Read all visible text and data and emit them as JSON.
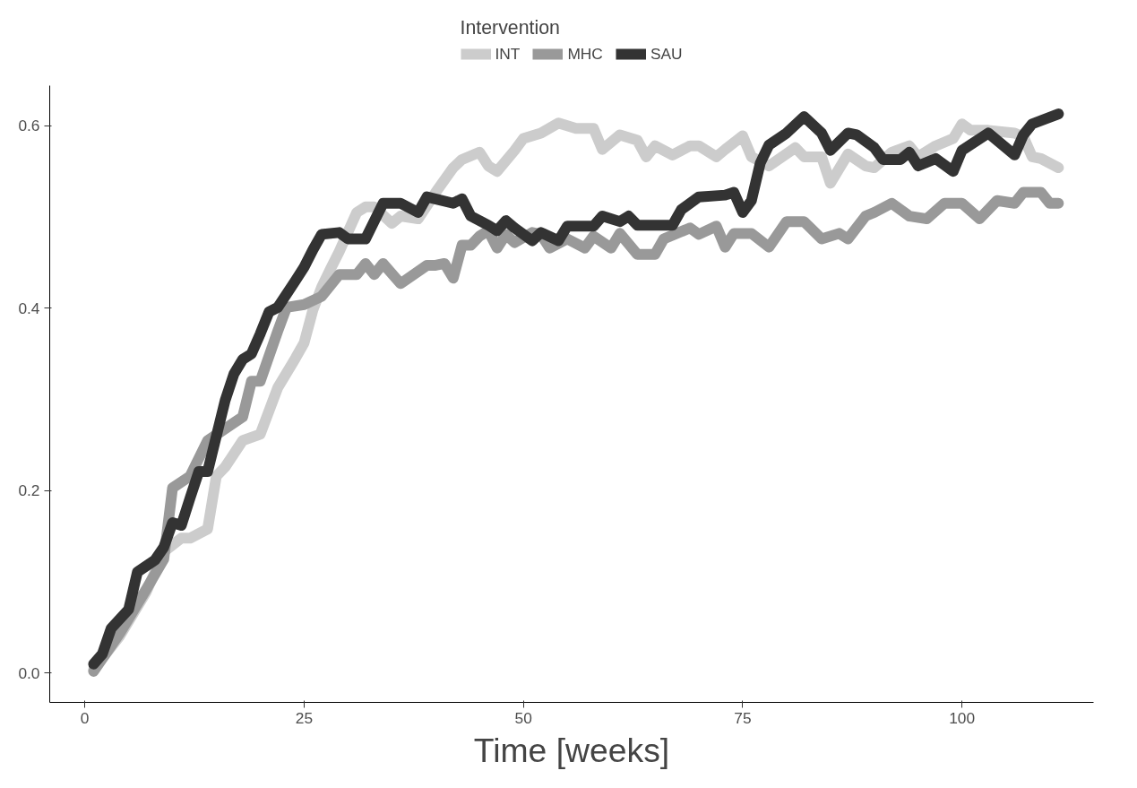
{
  "chart_data": {
    "type": "line",
    "xlabel": "Time [weeks]",
    "legend_title": "Intervention",
    "legend": "top",
    "grid": false,
    "marker": "none",
    "line_style": "solid",
    "xlim": [
      -4,
      115
    ],
    "xticks": [
      0,
      25,
      50,
      75,
      100
    ],
    "ylim": [
      -0.032,
      0.644
    ],
    "yticks": [
      {
        "value": 0,
        "label": "0.0"
      },
      {
        "value": 0.2,
        "label": "0.2"
      },
      {
        "value": 0.4,
        "label": "0.4"
      },
      {
        "value": 0.6,
        "label": "0.6"
      }
    ],
    "series": [
      {
        "name": "INT",
        "color": "#cccccc",
        "x": [
          1,
          4,
          7,
          9,
          11,
          12,
          14,
          15,
          16,
          18,
          20,
          22,
          24,
          25,
          26,
          27,
          28,
          29,
          31,
          32,
          33,
          35,
          36,
          38,
          40,
          42,
          43,
          45,
          46,
          47,
          49,
          50,
          52,
          54,
          56,
          58,
          59,
          61,
          63,
          64,
          65,
          67,
          69,
          70,
          72,
          73,
          75,
          76,
          78,
          81,
          82,
          84,
          85,
          87,
          89,
          90,
          92,
          94,
          95,
          97,
          99,
          100,
          101,
          103,
          106,
          107,
          108,
          109,
          111
        ],
        "values": [
          0.004,
          0.041,
          0.089,
          0.133,
          0.148,
          0.148,
          0.158,
          0.216,
          0.226,
          0.255,
          0.262,
          0.313,
          0.345,
          0.362,
          0.398,
          0.423,
          0.443,
          0.462,
          0.505,
          0.511,
          0.511,
          0.493,
          0.501,
          0.498,
          0.527,
          0.554,
          0.563,
          0.571,
          0.556,
          0.55,
          0.573,
          0.586,
          0.592,
          0.603,
          0.597,
          0.597,
          0.574,
          0.59,
          0.584,
          0.566,
          0.578,
          0.568,
          0.578,
          0.578,
          0.566,
          0.574,
          0.589,
          0.566,
          0.556,
          0.576,
          0.566,
          0.566,
          0.537,
          0.569,
          0.556,
          0.554,
          0.571,
          0.578,
          0.566,
          0.578,
          0.586,
          0.602,
          0.595,
          0.595,
          0.592,
          0.588,
          0.566,
          0.564,
          0.554
        ]
      },
      {
        "name": "MHC",
        "color": "#999999",
        "x": [
          1,
          4,
          7,
          9,
          10,
          12,
          14,
          16,
          18,
          19,
          20,
          22,
          23,
          25,
          27,
          29,
          31,
          32,
          33,
          34,
          36,
          39,
          40,
          41,
          42,
          43,
          44,
          45,
          46,
          47,
          48,
          49,
          51,
          52,
          53,
          55,
          57,
          58,
          60,
          61,
          63,
          65,
          66,
          69,
          70,
          72,
          73,
          74,
          76,
          78,
          80,
          82,
          84,
          86,
          87,
          89,
          90,
          92,
          94,
          96,
          98,
          100,
          102,
          104,
          106,
          107,
          109,
          110,
          111
        ],
        "values": [
          0.002,
          0.044,
          0.092,
          0.125,
          0.203,
          0.216,
          0.255,
          0.268,
          0.281,
          0.32,
          0.32,
          0.375,
          0.401,
          0.404,
          0.413,
          0.437,
          0.437,
          0.449,
          0.437,
          0.449,
          0.427,
          0.447,
          0.447,
          0.449,
          0.433,
          0.469,
          0.469,
          0.479,
          0.485,
          0.466,
          0.481,
          0.472,
          0.483,
          0.481,
          0.466,
          0.476,
          0.466,
          0.479,
          0.466,
          0.482,
          0.459,
          0.459,
          0.476,
          0.488,
          0.481,
          0.49,
          0.467,
          0.482,
          0.482,
          0.467,
          0.495,
          0.495,
          0.476,
          0.482,
          0.476,
          0.501,
          0.505,
          0.515,
          0.501,
          0.498,
          0.515,
          0.515,
          0.498,
          0.518,
          0.515,
          0.527,
          0.527,
          0.515,
          0.515
        ]
      },
      {
        "name": "SAU",
        "color": "#333333",
        "x": [
          1,
          2,
          3,
          5,
          6,
          8,
          9,
          10,
          11,
          12,
          13,
          14,
          15,
          16,
          17,
          18,
          19,
          20,
          21,
          22,
          24,
          25,
          26,
          27,
          29,
          30,
          32,
          34,
          36,
          38,
          39,
          42,
          43,
          44,
          46,
          47,
          48,
          49,
          51,
          52,
          54,
          55,
          58,
          59,
          61,
          62,
          63,
          67,
          68,
          70,
          73,
          74,
          75,
          76,
          77,
          78,
          80,
          82,
          84,
          85,
          87,
          88,
          90,
          91,
          93,
          94,
          95,
          97,
          99,
          100,
          103,
          106,
          107,
          108,
          111
        ],
        "values": [
          0.01,
          0.021,
          0.049,
          0.07,
          0.111,
          0.124,
          0.138,
          0.165,
          0.162,
          0.192,
          0.221,
          0.221,
          0.26,
          0.299,
          0.328,
          0.344,
          0.35,
          0.372,
          0.396,
          0.401,
          0.43,
          0.445,
          0.464,
          0.481,
          0.483,
          0.476,
          0.476,
          0.515,
          0.515,
          0.505,
          0.522,
          0.515,
          0.52,
          0.501,
          0.491,
          0.485,
          0.496,
          0.488,
          0.474,
          0.483,
          0.474,
          0.49,
          0.49,
          0.501,
          0.495,
          0.501,
          0.491,
          0.491,
          0.508,
          0.522,
          0.524,
          0.527,
          0.505,
          0.518,
          0.559,
          0.579,
          0.592,
          0.61,
          0.592,
          0.573,
          0.592,
          0.59,
          0.576,
          0.563,
          0.563,
          0.571,
          0.556,
          0.564,
          0.55,
          0.573,
          0.592,
          0.568,
          0.59,
          0.602,
          0.613
        ]
      }
    ]
  }
}
